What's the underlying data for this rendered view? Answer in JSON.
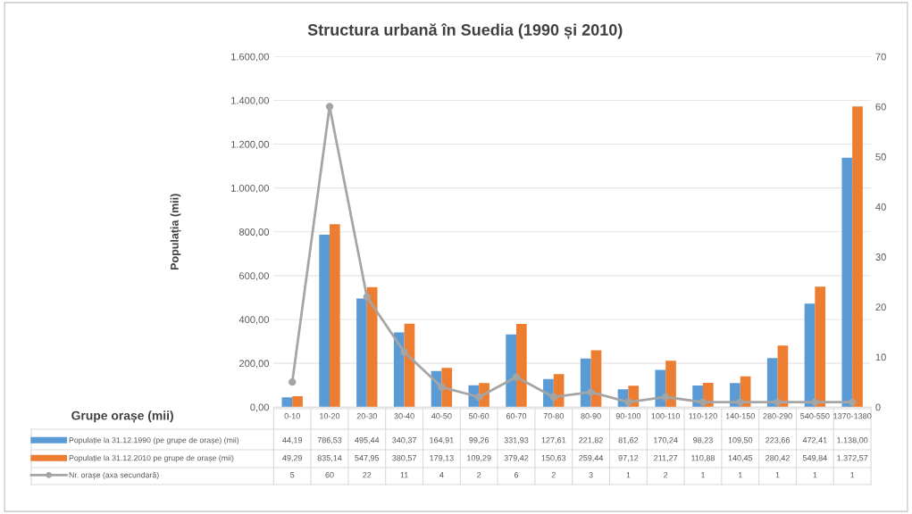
{
  "chart_data": {
    "type": "bar",
    "title": "Structura urbană în Suedia (1990 și 2010)",
    "xlabel": "Grupe orașe (mii)",
    "ylabel": "Populația (mii)",
    "categories": [
      "0-10",
      "10-20",
      "20-30",
      "30-40",
      "40-50",
      "50-60",
      "60-70",
      "70-80",
      "80-90",
      "90-100",
      "100-110",
      "110-120",
      "140-150",
      "280-290",
      "540-550",
      "1370-1380"
    ],
    "series": [
      {
        "name": "Populație la 31.12.1990 (pe grupe de orașe) (mii)",
        "color": "#5b9bd5",
        "values": [
          44.19,
          786.53,
          495.44,
          340.37,
          164.91,
          99.26,
          331.93,
          127.61,
          221.82,
          81.62,
          170.24,
          98.23,
          109.5,
          223.66,
          472.41,
          1138.0
        ],
        "value_labels": [
          "44,19",
          "786,53",
          "495,44",
          "340,37",
          "164,91",
          "99,26",
          "331,93",
          "127,61",
          "221,82",
          "81,62",
          "170,24",
          "98,23",
          "109,50",
          "223,66",
          "472,41",
          "1.138,00"
        ]
      },
      {
        "name": "Populație la 31.12.2010 pe grupe de orașe (mii)",
        "color": "#ed7d31",
        "values": [
          49.29,
          835.14,
          547.95,
          380.57,
          179.13,
          109.29,
          379.42,
          150.63,
          259.44,
          97.12,
          211.27,
          110.88,
          140.45,
          280.42,
          549.84,
          1372.57
        ],
        "value_labels": [
          "49,29",
          "835,14",
          "547,95",
          "380,57",
          "179,13",
          "109,29",
          "379,42",
          "150,63",
          "259,44",
          "97,12",
          "211,27",
          "110,88",
          "140,45",
          "280,42",
          "549,84",
          "1.372,57"
        ]
      },
      {
        "name": "Nr. orașe (axa secundară)",
        "type": "line",
        "axis": "y2",
        "color": "#a5a5a5",
        "marker": "circle",
        "values": [
          5,
          60,
          22,
          11,
          4,
          2,
          6,
          2,
          3,
          1,
          2,
          1,
          1,
          1,
          1,
          1
        ],
        "value_labels": [
          "5",
          "60",
          "22",
          "11",
          "4",
          "2",
          "6",
          "2",
          "3",
          "1",
          "2",
          "1",
          "1",
          "1",
          "1",
          "1"
        ]
      }
    ],
    "ylim": [
      0,
      1600
    ],
    "yticks": [
      {
        "value": 0,
        "label": "0,00"
      },
      {
        "value": 200,
        "label": "200,00"
      },
      {
        "value": 400,
        "label": "400,00"
      },
      {
        "value": 600,
        "label": "600,00"
      },
      {
        "value": 800,
        "label": "800,00"
      },
      {
        "value": 1000,
        "label": "1.000,00"
      },
      {
        "value": 1200,
        "label": "1.200,00"
      },
      {
        "value": 1400,
        "label": "1.400,00"
      },
      {
        "value": 1600,
        "label": "1.600,00"
      }
    ],
    "y2lim": [
      0,
      70
    ],
    "y2ticks": [
      0,
      10,
      20,
      30,
      40,
      50,
      60,
      70
    ],
    "grid": "y",
    "legend": "bottom"
  }
}
